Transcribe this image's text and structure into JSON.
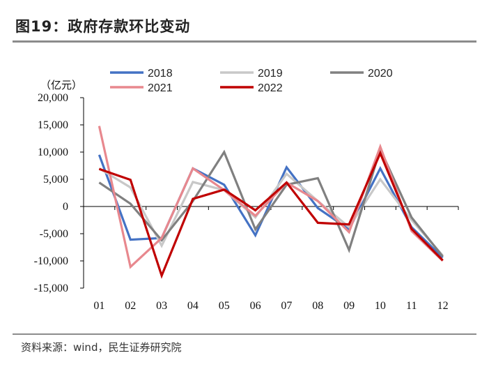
{
  "figure": {
    "title": "图19：政府存款环比变动",
    "source": "资料来源：wind，民生证券研究院"
  },
  "chart_data": {
    "type": "line",
    "title": "政府存款环比变动",
    "unit_label": "（亿元）",
    "xlabel": "",
    "ylabel": "（亿元）",
    "categories": [
      "01",
      "02",
      "03",
      "04",
      "05",
      "06",
      "07",
      "08",
      "09",
      "10",
      "11",
      "12"
    ],
    "ylim": [
      -15000,
      20000
    ],
    "yticks": [
      20000,
      15000,
      10000,
      5000,
      0,
      -5000,
      -10000,
      -15000
    ],
    "ytick_labels": [
      "20,000",
      "15,000",
      "10,000",
      "5,000",
      "0",
      "-5,000",
      "-10,000",
      "-15,000"
    ],
    "legend_position": "top",
    "series": [
      {
        "name": "2018",
        "color": "#4472c4",
        "values": [
          9500,
          -6100,
          -5800,
          7000,
          4000,
          -5300,
          7200,
          -300,
          -4200,
          7000,
          -3800,
          -9400
        ]
      },
      {
        "name": "2019",
        "color": "#c8c8c8",
        "values": [
          7000,
          3500,
          -7200,
          4500,
          3000,
          -2000,
          6000,
          1000,
          -3800,
          5000,
          -2500,
          -9000
        ]
      },
      {
        "name": "2020",
        "color": "#808080",
        "values": [
          4400,
          500,
          -6200,
          1000,
          10000,
          -4200,
          4000,
          5200,
          -8000,
          10500,
          -2000,
          -9200
        ]
      },
      {
        "name": "2021",
        "color": "#e8888e",
        "values": [
          14800,
          -11100,
          -5800,
          7000,
          3000,
          -1700,
          4400,
          1000,
          -4700,
          11000,
          -4500,
          -10000
        ]
      },
      {
        "name": "2022",
        "color": "#c00000",
        "values": [
          6900,
          4900,
          -12700,
          1400,
          3100,
          -700,
          4400,
          -3000,
          -3300,
          9800,
          -4100,
          -9900
        ]
      }
    ]
  }
}
